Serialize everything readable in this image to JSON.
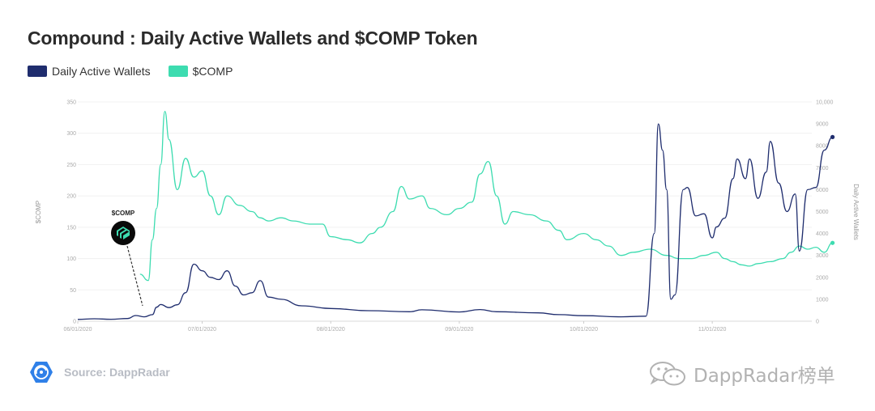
{
  "title": "Compound : Daily Active Wallets and $COMP Token",
  "legend": {
    "series1": "Daily Active Wallets",
    "series2": "$COMP"
  },
  "colors": {
    "wallets": "#1f2d6e",
    "comp": "#3ddcb0"
  },
  "source": "Source: DappRadar",
  "watermark": "DappRadar榜单",
  "annotation": {
    "label": "$COMP",
    "icon": "compound-logo-icon"
  },
  "chart_data": {
    "type": "line",
    "title": "Compound : Daily Active Wallets and $COMP Token",
    "x_ticks": [
      "06/01/2020",
      "07/01/2020",
      "08/01/2020",
      "09/01/2020",
      "10/01/2020",
      "11/01/2020"
    ],
    "x_range": [
      "2020-06-01",
      "2020-11-25"
    ],
    "ylabel_left": "$COMP",
    "ylabel_right": "Daily Active Wallets",
    "ylim_left": [
      0,
      350
    ],
    "ylim_right": [
      0,
      10000
    ],
    "yticks_left": [
      "0",
      "50",
      "100",
      "150",
      "200",
      "250",
      "300",
      "350"
    ],
    "yticks_right": [
      "0",
      "1000",
      "2000",
      "3000",
      "4000",
      "5000",
      "6000",
      "7000",
      "8000",
      "9000",
      "10,000"
    ],
    "legend_position": "top-left",
    "grid": "horizontal",
    "series": [
      {
        "name": "Daily Active Wallets",
        "axis": "right",
        "points": [
          [
            "2020-06-01",
            80
          ],
          [
            "2020-06-05",
            110
          ],
          [
            "2020-06-09",
            90
          ],
          [
            "2020-06-13",
            120
          ],
          [
            "2020-06-15",
            260
          ],
          [
            "2020-06-17",
            200
          ],
          [
            "2020-06-19",
            300
          ],
          [
            "2020-06-20",
            640
          ],
          [
            "2020-06-21",
            760
          ],
          [
            "2020-06-23",
            620
          ],
          [
            "2020-06-25",
            750
          ],
          [
            "2020-06-27",
            1300
          ],
          [
            "2020-06-29",
            2600
          ],
          [
            "2020-07-01",
            2300
          ],
          [
            "2020-07-03",
            2000
          ],
          [
            "2020-07-05",
            1900
          ],
          [
            "2020-07-07",
            2300
          ],
          [
            "2020-07-09",
            1600
          ],
          [
            "2020-07-11",
            1200
          ],
          [
            "2020-07-13",
            1300
          ],
          [
            "2020-07-15",
            1850
          ],
          [
            "2020-07-17",
            1100
          ],
          [
            "2020-07-20",
            1000
          ],
          [
            "2020-07-25",
            700
          ],
          [
            "2020-08-01",
            580
          ],
          [
            "2020-08-10",
            480
          ],
          [
            "2020-08-20",
            430
          ],
          [
            "2020-08-23",
            520
          ],
          [
            "2020-09-01",
            420
          ],
          [
            "2020-09-06",
            530
          ],
          [
            "2020-09-10",
            430
          ],
          [
            "2020-09-20",
            380
          ],
          [
            "2020-09-25",
            300
          ],
          [
            "2020-10-01",
            250
          ],
          [
            "2020-10-10",
            200
          ],
          [
            "2020-10-16",
            230
          ],
          [
            "2020-10-18",
            4000
          ],
          [
            "2020-10-19",
            9000
          ],
          [
            "2020-10-20",
            7800
          ],
          [
            "2020-10-21",
            6000
          ],
          [
            "2020-10-22",
            1000
          ],
          [
            "2020-10-23",
            1200
          ],
          [
            "2020-10-25",
            6000
          ],
          [
            "2020-10-26",
            6100
          ],
          [
            "2020-10-28",
            4800
          ],
          [
            "2020-10-30",
            4900
          ],
          [
            "2020-11-01",
            3800
          ],
          [
            "2020-11-02",
            4300
          ],
          [
            "2020-11-04",
            4700
          ],
          [
            "2020-11-06",
            6500
          ],
          [
            "2020-11-07",
            7400
          ],
          [
            "2020-11-09",
            6500
          ],
          [
            "2020-11-10",
            7400
          ],
          [
            "2020-11-12",
            5600
          ],
          [
            "2020-11-14",
            6800
          ],
          [
            "2020-11-15",
            8200
          ],
          [
            "2020-11-17",
            6300
          ],
          [
            "2020-11-19",
            5000
          ],
          [
            "2020-11-21",
            5800
          ],
          [
            "2020-11-22",
            3200
          ],
          [
            "2020-11-24",
            6000
          ],
          [
            "2020-11-26",
            6100
          ],
          [
            "2020-11-28",
            7800
          ],
          [
            "2020-11-30",
            8400
          ]
        ]
      },
      {
        "name": "$COMP",
        "axis": "left",
        "points": [
          [
            "2020-06-16",
            75
          ],
          [
            "2020-06-18",
            65
          ],
          [
            "2020-06-19",
            130
          ],
          [
            "2020-06-20",
            180
          ],
          [
            "2020-06-21",
            250
          ],
          [
            "2020-06-22",
            335
          ],
          [
            "2020-06-23",
            290
          ],
          [
            "2020-06-25",
            210
          ],
          [
            "2020-06-27",
            260
          ],
          [
            "2020-06-29",
            230
          ],
          [
            "2020-07-01",
            240
          ],
          [
            "2020-07-03",
            200
          ],
          [
            "2020-07-05",
            170
          ],
          [
            "2020-07-07",
            200
          ],
          [
            "2020-07-10",
            185
          ],
          [
            "2020-07-13",
            175
          ],
          [
            "2020-07-15",
            165
          ],
          [
            "2020-07-17",
            160
          ],
          [
            "2020-07-20",
            165
          ],
          [
            "2020-07-23",
            160
          ],
          [
            "2020-07-27",
            155
          ],
          [
            "2020-07-30",
            155
          ],
          [
            "2020-08-01",
            135
          ],
          [
            "2020-08-05",
            130
          ],
          [
            "2020-08-08",
            125
          ],
          [
            "2020-08-11",
            140
          ],
          [
            "2020-08-13",
            150
          ],
          [
            "2020-08-16",
            175
          ],
          [
            "2020-08-18",
            215
          ],
          [
            "2020-08-20",
            195
          ],
          [
            "2020-08-23",
            200
          ],
          [
            "2020-08-25",
            180
          ],
          [
            "2020-08-29",
            170
          ],
          [
            "2020-09-01",
            180
          ],
          [
            "2020-09-04",
            190
          ],
          [
            "2020-09-06",
            235
          ],
          [
            "2020-09-08",
            255
          ],
          [
            "2020-09-10",
            200
          ],
          [
            "2020-09-12",
            155
          ],
          [
            "2020-09-14",
            175
          ],
          [
            "2020-09-18",
            170
          ],
          [
            "2020-09-22",
            160
          ],
          [
            "2020-09-25",
            145
          ],
          [
            "2020-09-27",
            130
          ],
          [
            "2020-10-01",
            140
          ],
          [
            "2020-10-04",
            130
          ],
          [
            "2020-10-07",
            120
          ],
          [
            "2020-10-10",
            105
          ],
          [
            "2020-10-13",
            110
          ],
          [
            "2020-10-17",
            115
          ],
          [
            "2020-10-21",
            105
          ],
          [
            "2020-10-24",
            100
          ],
          [
            "2020-10-27",
            100
          ],
          [
            "2020-10-30",
            105
          ],
          [
            "2020-11-02",
            110
          ],
          [
            "2020-11-04",
            100
          ],
          [
            "2020-11-06",
            95
          ],
          [
            "2020-11-08",
            90
          ],
          [
            "2020-11-10",
            88
          ],
          [
            "2020-11-12",
            92
          ],
          [
            "2020-11-15",
            95
          ],
          [
            "2020-11-18",
            100
          ],
          [
            "2020-11-20",
            110
          ],
          [
            "2020-11-22",
            120
          ],
          [
            "2020-11-24",
            115
          ],
          [
            "2020-11-26",
            118
          ],
          [
            "2020-11-28",
            110
          ],
          [
            "2020-11-30",
            125
          ]
        ]
      }
    ]
  }
}
